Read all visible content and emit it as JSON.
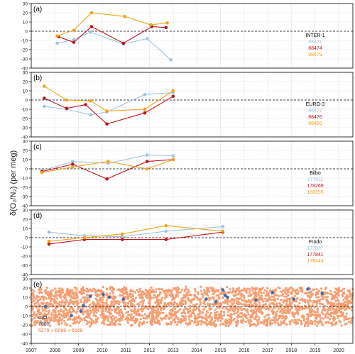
{
  "figure": {
    "ylabel": "δ(O₂/N₂) (per meg)",
    "x_ticks": [
      2007,
      2008,
      2009,
      2010,
      2011,
      2012,
      2013,
      2014,
      2015,
      2016,
      2017,
      2018,
      2019,
      2020
    ],
    "colors": {
      "blue": "#9fc5e0",
      "red": "#c0141c",
      "orange": "#f2a21c",
      "cio_bg": "#f79a6b",
      "cio_pts": "#3b6db5"
    }
  },
  "chart_data": [
    {
      "type": "line",
      "panel": "(a)",
      "station": "INTER-1",
      "ylim": [
        -40,
        30
      ],
      "yticks": [
        -40,
        -30,
        -20,
        -10,
        0,
        10,
        20,
        30
      ],
      "xlim": [
        2007,
        2020.6
      ],
      "series": [
        {
          "name": "88471",
          "color": "#9fc5e0",
          "x": [
            2008.1,
            2008.8,
            2009.5,
            2010.9,
            2011.9,
            2012.9
          ],
          "y": [
            -13,
            -9,
            -1,
            -14,
            -8,
            -31
          ]
        },
        {
          "name": "88474",
          "color": "#c0141c",
          "x": [
            2008.15,
            2008.8,
            2009.55,
            2010.9,
            2012.1,
            2012.7
          ],
          "y": [
            -6,
            -12,
            5,
            -13,
            5,
            4
          ]
        },
        {
          "name": "88479",
          "color": "#f2a21c",
          "x": [
            2008.1,
            2008.8,
            2009.55,
            2010.95,
            2012.05,
            2012.75
          ],
          "y": [
            -5,
            1,
            20,
            16,
            7,
            9
          ]
        }
      ]
    },
    {
      "type": "line",
      "panel": "(b)",
      "station": "EURO-3",
      "ylim": [
        -40,
        30
      ],
      "yticks": [
        -40,
        -30,
        -20,
        -10,
        0,
        10,
        20,
        30
      ],
      "xlim": [
        2007,
        2020.6
      ],
      "series": [
        {
          "name": "88472",
          "color": "#9fc5e0",
          "x": [
            2007.55,
            2008.5,
            2009.5,
            2010.2,
            2011.8,
            2013.0
          ],
          "y": [
            -7,
            -10,
            -16,
            -13,
            6,
            8
          ]
        },
        {
          "name": "88476",
          "color": "#c0141c",
          "x": [
            2007.55,
            2008.5,
            2009.3,
            2010.2,
            2011.8,
            2013.0
          ],
          "y": [
            2,
            -9,
            -5,
            -26,
            -14,
            4
          ]
        },
        {
          "name": "88489",
          "color": "#f2a21c",
          "x": [
            2007.55,
            2008.5,
            2009.5,
            2010.2,
            2011.8,
            2013.0
          ],
          "y": [
            15,
            0,
            -1,
            -12,
            -10,
            10
          ]
        }
      ]
    },
    {
      "type": "line",
      "panel": "(c)",
      "station": "Bilbo",
      "ylim": [
        -40,
        30
      ],
      "yticks": [
        -40,
        -30,
        -20,
        -10,
        0,
        10,
        20,
        30
      ],
      "xlim": [
        2007,
        2020.6
      ],
      "series": [
        {
          "name": "177811",
          "color": "#9fc5e0",
          "x": [
            2007.45,
            2008.75,
            2010.25,
            2011.9,
            2013.0
          ],
          "y": [
            -2,
            8,
            6,
            15,
            14
          ]
        },
        {
          "name": "178269",
          "color": "#c0141c",
          "x": [
            2007.45,
            2008.75,
            2010.2,
            2011.9,
            2013.0
          ],
          "y": [
            -3,
            5,
            -11,
            8,
            10
          ]
        },
        {
          "name": "180655",
          "color": "#f2a21c",
          "x": [
            2007.45,
            2008.75,
            2010.25,
            2011.9,
            2013.0
          ],
          "y": [
            -4,
            2,
            8,
            0,
            10
          ]
        }
      ]
    },
    {
      "type": "line",
      "panel": "(d)",
      "station": "Frodo",
      "ylim": [
        -40,
        30
      ],
      "yticks": [
        -40,
        -30,
        -20,
        -10,
        0,
        10,
        20,
        30
      ],
      "xlim": [
        2007,
        2020.6
      ],
      "series": [
        {
          "name": "177837",
          "color": "#9fc5e0",
          "x": [
            2007.75,
            2009.25,
            2010.85,
            2012.7,
            2015.1
          ],
          "y": [
            6,
            2,
            1,
            7,
            12
          ]
        },
        {
          "name": "177841",
          "color": "#c0141c",
          "x": [
            2007.75,
            2009.25,
            2010.85,
            2012.7,
            2015.1
          ],
          "y": [
            -7,
            -2,
            -2,
            -2,
            6
          ]
        },
        {
          "name": "178444",
          "color": "#f2a21c",
          "x": [
            2007.75,
            2009.25,
            2010.85,
            2012.7,
            2015.1
          ],
          "y": [
            -4,
            0,
            4,
            13,
            7
          ]
        }
      ]
    },
    {
      "type": "scatter",
      "panel": "(e)",
      "station": "CIO",
      "ylim": [
        -40,
        30
      ],
      "yticks": [
        -40,
        -30,
        -20,
        -10,
        0,
        10,
        20,
        30
      ],
      "xlim": [
        2007,
        2020.6
      ],
      "background": {
        "name": "5279 + 6096 + 6168",
        "color": "#f79a6b",
        "x_range": [
          2007.0,
          2020.6
        ],
        "y_spread": [
          -20,
          20
        ]
      },
      "series": [
        {
          "name": "7008",
          "color": "#3b6db5",
          "x": [
            2007.6,
            2008.7,
            2009.1,
            2009.2,
            2009.5,
            2010.05,
            2010.3,
            2010.9,
            2014.4,
            2014.8,
            2015.1,
            2015.2,
            2015.3,
            2016.5,
            2017.2,
            2018.1,
            2018.7,
            2019.3
          ],
          "y": [
            0,
            -10,
            -5,
            1,
            11,
            13,
            10,
            8,
            8,
            5,
            18,
            12,
            10,
            7,
            15,
            8,
            19,
            14
          ]
        }
      ]
    }
  ]
}
